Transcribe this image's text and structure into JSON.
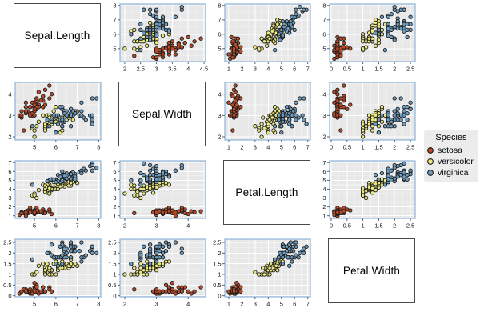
{
  "style": {
    "panel_bg": "#e8e8e8",
    "grid_major": "#ffffff",
    "grid_minor": "#f3f3f3",
    "panel_border": "#8fb3d9",
    "tick_color": "#49678a",
    "tick_label_color": "#111111",
    "box_border": "#4a4a4a",
    "point_stroke": "#1c1c1c"
  },
  "legend": {
    "title": "Species",
    "items": [
      {
        "label": "setosa",
        "color": "#bc4b27"
      },
      {
        "label": "versicolor",
        "color": "#ece97f"
      },
      {
        "label": "virginica",
        "color": "#6d9dc1"
      }
    ]
  },
  "chart_data": {
    "type": "scatter",
    "kind": "scatterplot-matrix",
    "dataset": "iris",
    "title": "",
    "legend_position": "right",
    "grid": "major white gridlines on gray panels, minor lighter",
    "variables": [
      "Sepal.Length",
      "Sepal.Width",
      "Petal.Length",
      "Petal.Width"
    ],
    "diagonal_labels": [
      "Sepal.Length",
      "Sepal.Width",
      "Petal.Length",
      "Petal.Width"
    ],
    "axes": [
      {
        "variable": "Sepal.Length",
        "range": [
          4.1,
          8.1
        ],
        "ticks": [
          5,
          6,
          7,
          8
        ]
      },
      {
        "variable": "Sepal.Width",
        "range": [
          1.85,
          4.55
        ],
        "ticks": [
          2,
          3,
          4
        ],
        "ticks_row1": [
          2,
          2.5,
          3,
          3.5,
          4,
          4.5
        ]
      },
      {
        "variable": "Petal.Length",
        "range": [
          0.7,
          7.2
        ],
        "ticks": [
          1,
          2,
          3,
          4,
          5,
          6,
          7
        ]
      },
      {
        "variable": "Petal.Width",
        "range": [
          -0.05,
          2.65
        ],
        "ticks": [
          0,
          0.5,
          1,
          1.5,
          2,
          2.5
        ]
      }
    ],
    "series": [
      {
        "name": "setosa",
        "color": "#bc4b27",
        "Sepal.Length": [
          5.1,
          4.9,
          4.7,
          4.6,
          5.0,
          5.4,
          4.6,
          5.0,
          4.4,
          4.9,
          5.4,
          4.8,
          4.8,
          4.3,
          5.8,
          5.7,
          5.4,
          5.1,
          5.7,
          5.1,
          5.4,
          5.1,
          4.6,
          5.1,
          4.8,
          5.0,
          5.0,
          5.2,
          5.2,
          4.7,
          4.8,
          5.4,
          5.2,
          5.5,
          4.9,
          5.0,
          5.5,
          4.9,
          4.4,
          5.1,
          5.0,
          4.5,
          4.4,
          5.0,
          5.1,
          4.8,
          5.1,
          4.6,
          5.3,
          5.0
        ],
        "Sepal.Width": [
          3.5,
          3.0,
          3.2,
          3.1,
          3.6,
          3.9,
          3.4,
          3.4,
          2.9,
          3.1,
          3.7,
          3.4,
          3.0,
          3.0,
          4.0,
          4.4,
          3.9,
          3.5,
          3.8,
          3.8,
          3.4,
          3.7,
          3.6,
          3.3,
          3.4,
          3.0,
          3.4,
          3.5,
          3.4,
          3.2,
          3.1,
          3.4,
          4.1,
          4.2,
          3.1,
          3.2,
          3.5,
          3.6,
          3.0,
          3.4,
          3.5,
          2.3,
          3.2,
          3.5,
          3.8,
          3.0,
          3.8,
          3.2,
          3.7,
          3.3
        ],
        "Petal.Length": [
          1.4,
          1.4,
          1.3,
          1.5,
          1.4,
          1.7,
          1.4,
          1.5,
          1.4,
          1.5,
          1.5,
          1.6,
          1.4,
          1.1,
          1.2,
          1.5,
          1.3,
          1.4,
          1.7,
          1.5,
          1.7,
          1.5,
          1.0,
          1.7,
          1.9,
          1.6,
          1.6,
          1.5,
          1.4,
          1.6,
          1.6,
          1.5,
          1.5,
          1.4,
          1.5,
          1.2,
          1.3,
          1.4,
          1.3,
          1.5,
          1.3,
          1.3,
          1.3,
          1.6,
          1.9,
          1.4,
          1.6,
          1.4,
          1.5,
          1.4
        ],
        "Petal.Width": [
          0.2,
          0.2,
          0.2,
          0.2,
          0.2,
          0.4,
          0.3,
          0.2,
          0.2,
          0.1,
          0.2,
          0.2,
          0.1,
          0.1,
          0.2,
          0.4,
          0.4,
          0.3,
          0.3,
          0.3,
          0.2,
          0.4,
          0.2,
          0.5,
          0.2,
          0.2,
          0.4,
          0.2,
          0.2,
          0.2,
          0.2,
          0.4,
          0.1,
          0.2,
          0.2,
          0.2,
          0.2,
          0.1,
          0.2,
          0.2,
          0.3,
          0.3,
          0.2,
          0.6,
          0.4,
          0.3,
          0.2,
          0.2,
          0.2,
          0.2
        ]
      },
      {
        "name": "versicolor",
        "color": "#ece97f",
        "Sepal.Length": [
          7.0,
          6.4,
          6.9,
          5.5,
          6.5,
          5.7,
          6.3,
          4.9,
          6.6,
          5.2,
          5.0,
          5.9,
          6.0,
          6.1,
          5.6,
          6.7,
          5.6,
          5.8,
          6.2,
          5.6,
          5.9,
          6.1,
          6.3,
          6.1,
          6.4,
          6.6,
          6.8,
          6.7,
          6.0,
          5.7,
          5.5,
          5.5,
          5.8,
          6.0,
          5.4,
          6.0,
          6.7,
          6.3,
          5.6,
          5.5,
          5.5,
          6.1,
          5.8,
          5.0,
          5.6,
          5.7,
          5.7,
          6.2,
          5.1,
          5.7
        ],
        "Sepal.Width": [
          3.2,
          3.2,
          3.1,
          2.3,
          2.8,
          2.8,
          3.3,
          2.4,
          2.9,
          2.7,
          2.0,
          3.0,
          2.2,
          2.9,
          2.9,
          3.1,
          3.0,
          2.7,
          2.2,
          2.5,
          3.2,
          2.8,
          2.5,
          2.8,
          2.9,
          3.0,
          2.8,
          3.0,
          2.9,
          2.6,
          2.4,
          2.4,
          2.7,
          2.7,
          3.0,
          3.4,
          3.1,
          2.3,
          3.0,
          2.5,
          2.6,
          3.0,
          2.6,
          2.3,
          2.7,
          3.0,
          2.9,
          2.9,
          2.5,
          2.8
        ],
        "Petal.Length": [
          4.7,
          4.5,
          4.9,
          4.0,
          4.6,
          4.5,
          4.7,
          3.3,
          4.6,
          3.9,
          3.5,
          4.2,
          4.0,
          4.7,
          3.6,
          4.4,
          4.5,
          4.1,
          4.5,
          3.9,
          4.8,
          4.0,
          4.9,
          4.7,
          4.3,
          4.4,
          4.8,
          5.0,
          4.5,
          3.5,
          3.8,
          3.7,
          3.9,
          5.1,
          4.5,
          4.5,
          4.7,
          4.4,
          4.1,
          4.0,
          4.4,
          4.6,
          4.0,
          3.3,
          4.2,
          4.2,
          4.2,
          4.3,
          3.0,
          4.1
        ],
        "Petal.Width": [
          1.4,
          1.5,
          1.5,
          1.3,
          1.5,
          1.3,
          1.6,
          1.0,
          1.3,
          1.4,
          1.0,
          1.5,
          1.0,
          1.4,
          1.3,
          1.4,
          1.5,
          1.0,
          1.5,
          1.1,
          1.8,
          1.3,
          1.5,
          1.2,
          1.3,
          1.4,
          1.4,
          1.7,
          1.5,
          1.0,
          1.1,
          1.0,
          1.2,
          1.6,
          1.5,
          1.6,
          1.5,
          1.3,
          1.3,
          1.3,
          1.2,
          1.4,
          1.2,
          1.0,
          1.3,
          1.2,
          1.3,
          1.3,
          1.1,
          1.3
        ]
      },
      {
        "name": "virginica",
        "color": "#6d9dc1",
        "Sepal.Length": [
          6.3,
          5.8,
          7.1,
          6.3,
          6.5,
          7.6,
          4.9,
          7.3,
          6.7,
          7.2,
          6.5,
          6.4,
          6.8,
          5.7,
          5.8,
          6.4,
          6.5,
          7.7,
          7.7,
          6.0,
          6.9,
          5.6,
          7.7,
          6.3,
          6.7,
          7.2,
          6.2,
          6.1,
          6.4,
          7.2,
          7.4,
          7.9,
          6.4,
          6.3,
          6.1,
          7.7,
          6.3,
          6.4,
          6.0,
          6.9,
          6.7,
          6.9,
          5.8,
          6.8,
          6.7,
          6.7,
          6.3,
          6.5,
          6.2,
          5.9
        ],
        "Sepal.Width": [
          3.3,
          2.7,
          3.0,
          2.9,
          3.0,
          3.0,
          2.5,
          2.9,
          2.5,
          3.6,
          3.2,
          2.7,
          3.0,
          2.5,
          2.8,
          3.2,
          3.0,
          3.8,
          2.6,
          2.2,
          3.2,
          2.8,
          2.8,
          2.7,
          3.3,
          3.2,
          2.8,
          3.0,
          2.8,
          3.0,
          2.8,
          3.8,
          2.8,
          2.8,
          2.6,
          3.0,
          3.4,
          3.1,
          3.0,
          3.1,
          3.1,
          3.1,
          2.7,
          3.2,
          3.3,
          3.0,
          2.5,
          3.0,
          3.4,
          3.0
        ],
        "Petal.Length": [
          6.0,
          5.1,
          5.9,
          5.6,
          5.8,
          6.6,
          4.5,
          6.3,
          5.8,
          6.1,
          5.1,
          5.3,
          5.5,
          5.0,
          5.1,
          5.3,
          5.5,
          6.7,
          6.9,
          5.0,
          5.7,
          4.9,
          6.7,
          4.9,
          5.7,
          6.0,
          4.8,
          4.9,
          5.6,
          5.8,
          6.1,
          6.4,
          5.6,
          5.1,
          5.6,
          6.1,
          5.6,
          5.5,
          4.8,
          5.4,
          5.6,
          5.1,
          5.1,
          5.9,
          5.7,
          5.2,
          5.0,
          5.2,
          5.4,
          5.1
        ],
        "Petal.Width": [
          2.5,
          1.9,
          2.1,
          1.8,
          2.2,
          2.1,
          1.7,
          1.8,
          1.8,
          2.5,
          2.0,
          1.9,
          2.1,
          2.0,
          2.4,
          2.3,
          1.8,
          2.2,
          2.3,
          1.5,
          2.3,
          2.0,
          2.0,
          1.8,
          2.1,
          1.8,
          1.8,
          1.8,
          2.1,
          1.6,
          1.9,
          2.0,
          2.2,
          1.5,
          1.4,
          2.3,
          2.4,
          1.8,
          1.8,
          2.1,
          2.4,
          2.3,
          1.9,
          2.3,
          2.5,
          2.3,
          1.9,
          2.0,
          2.3,
          1.8
        ]
      }
    ]
  }
}
